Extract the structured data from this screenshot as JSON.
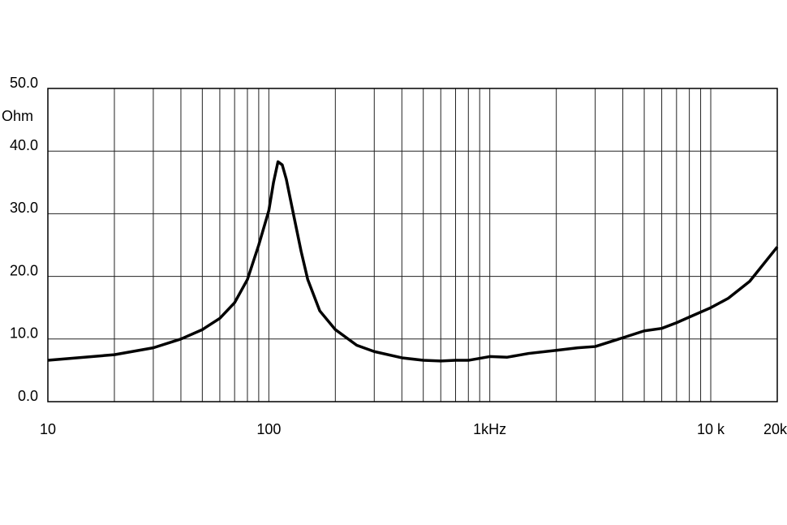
{
  "chart_data": {
    "type": "line",
    "y_unit": "Ohm",
    "xscale": "log",
    "grid": true,
    "color": "#000000",
    "x": [
      10,
      20,
      30,
      40,
      50,
      60,
      70,
      80,
      90,
      100,
      105,
      110,
      115,
      120,
      130,
      140,
      150,
      170,
      200,
      250,
      300,
      400,
      500,
      600,
      700,
      800,
      1000,
      1200,
      1500,
      2000,
      2500,
      3000,
      4000,
      5000,
      6000,
      7000,
      8000,
      10000,
      12000,
      15000,
      20000
    ],
    "values": [
      6.6,
      7.5,
      8.6,
      10.0,
      11.5,
      13.3,
      15.8,
      19.5,
      25.0,
      30.5,
      35.0,
      38.3,
      37.8,
      35.5,
      29.5,
      24.0,
      19.5,
      14.5,
      11.5,
      9.0,
      8.0,
      7.0,
      6.6,
      6.5,
      6.6,
      6.6,
      7.2,
      7.1,
      7.7,
      8.2,
      8.6,
      8.8,
      10.2,
      11.3,
      11.7,
      12.6,
      13.5,
      15.0,
      16.5,
      19.2,
      24.7
    ],
    "xlim": [
      10,
      20000
    ],
    "ylim": [
      0,
      50
    ],
    "xticks": [
      10,
      100,
      {
        "value": 1000,
        "label": "1kHz"
      },
      {
        "value": 10000,
        "label": "10 k"
      },
      {
        "value": 20000,
        "label": "20k"
      }
    ],
    "xminor": [
      20,
      30,
      40,
      50,
      60,
      70,
      80,
      90,
      200,
      300,
      400,
      500,
      600,
      700,
      800,
      900,
      2000,
      3000,
      4000,
      5000,
      6000,
      7000,
      8000,
      9000
    ],
    "yticks": [
      {
        "value": 0,
        "label": "0.0"
      },
      {
        "value": 10,
        "label": "10.0"
      },
      {
        "value": 20,
        "label": "20.0"
      },
      {
        "value": 30,
        "label": "30.0"
      },
      {
        "value": 40,
        "label": "40.0"
      },
      {
        "value": 50,
        "label": "50.0"
      }
    ]
  }
}
